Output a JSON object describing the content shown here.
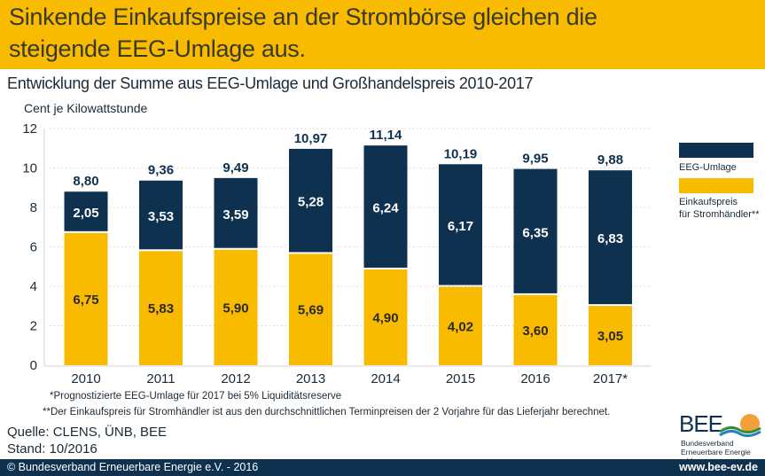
{
  "header": {
    "title_line1": "Sinkende Einkaufspreise an der Strombörse gleichen die",
    "title_line2": "steigende EEG-Umlage aus.",
    "subtitle": "Entwicklung der Summe aus EEG-Umlage und Großhandelspreis 2010-2017",
    "unit_label": "Cent je Kilowattstunde"
  },
  "colors": {
    "eeg": "#0e3150",
    "einkauf": "#f9bb00",
    "banner": "#f9bb00",
    "footer": "#0e3150"
  },
  "chart_data": {
    "type": "bar",
    "stacked": true,
    "title": "Entwicklung der Summe aus EEG-Umlage und Großhandelspreis 2010-2017",
    "ylabel": "Cent je Kilowattstunde",
    "xlabel": "",
    "ylim": [
      0,
      12
    ],
    "yticks": [
      "0",
      "2",
      "4",
      "6",
      "8",
      "10",
      "12"
    ],
    "grid": "dotted-horizontal",
    "legend_position": "right",
    "categories": [
      "2010",
      "2011",
      "2012",
      "2013",
      "2014",
      "2015",
      "2016",
      "2017*"
    ],
    "series": [
      {
        "name": "Einkaufspreis für Stromhändler**",
        "values": [
          6.75,
          5.83,
          5.9,
          5.69,
          4.9,
          4.02,
          3.6,
          3.05
        ],
        "labels": [
          "6,75",
          "5,83",
          "5,90",
          "5,69",
          "4,90",
          "4,02",
          "3,60",
          "3,05"
        ]
      },
      {
        "name": "EEG-Umlage",
        "values": [
          2.05,
          3.53,
          3.59,
          5.28,
          6.24,
          6.17,
          6.35,
          6.83
        ],
        "labels": [
          "2,05",
          "3,53",
          "3,59",
          "5,28",
          "6,24",
          "6,17",
          "6,35",
          "6,83"
        ]
      }
    ],
    "totals": [
      8.8,
      9.36,
      9.49,
      10.97,
      11.14,
      10.19,
      9.95,
      9.88
    ],
    "total_labels": [
      "8,80",
      "9,36",
      "9,49",
      "10,97",
      "11,14",
      "10,19",
      "9,95",
      "9,88"
    ]
  },
  "legend": {
    "eeg_label": "EEG-Umlage",
    "einkauf_line1": "Einkaufspreis",
    "einkauf_line2": "für Stromhändler**"
  },
  "notes": {
    "note1": "*Prognostizierte EEG-Umlage für 2017 bei 5% Liquiditätsreserve",
    "note2": "**Der Einkaufspreis für Stromhändler ist aus den durchschnittlichen Terminpreisen der 2 Vorjahre für das Lieferjahr berechnet."
  },
  "source": {
    "quelle": "Quelle: CLENS, ÜNB, BEE",
    "stand": "Stand: 10/2016"
  },
  "logo": {
    "name": "BEE",
    "line1": "Bundesverband",
    "line2": "Erneuerbare Energie e.V."
  },
  "footer": {
    "copyright": "© Bundesverband Erneuerbare Energie e.V. - 2016",
    "url": "www.bee-ev.de"
  }
}
